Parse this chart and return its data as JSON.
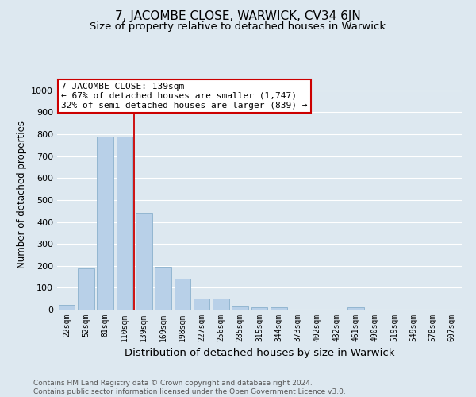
{
  "title": "7, JACOMBE CLOSE, WARWICK, CV34 6JN",
  "subtitle": "Size of property relative to detached houses in Warwick",
  "xlabel": "Distribution of detached houses by size in Warwick",
  "ylabel": "Number of detached properties",
  "categories": [
    "22sqm",
    "52sqm",
    "81sqm",
    "110sqm",
    "139sqm",
    "169sqm",
    "198sqm",
    "227sqm",
    "256sqm",
    "285sqm",
    "315sqm",
    "344sqm",
    "373sqm",
    "402sqm",
    "432sqm",
    "461sqm",
    "490sqm",
    "519sqm",
    "549sqm",
    "578sqm",
    "607sqm"
  ],
  "values": [
    20,
    190,
    790,
    790,
    440,
    195,
    140,
    50,
    50,
    15,
    10,
    10,
    0,
    0,
    0,
    10,
    0,
    0,
    0,
    0,
    0
  ],
  "bar_color": "#b8d0e8",
  "bar_edge_color": "#8ab0cc",
  "bar_width": 0.85,
  "red_line_x": 3.5,
  "red_line_color": "#cc0000",
  "annotation_text": "7 JACOMBE CLOSE: 139sqm\n← 67% of detached houses are smaller (1,747)\n32% of semi-detached houses are larger (839) →",
  "annotation_box_color": "#ffffff",
  "annotation_box_edge": "#cc0000",
  "ylim": [
    0,
    1050
  ],
  "yticks": [
    0,
    100,
    200,
    300,
    400,
    500,
    600,
    700,
    800,
    900,
    1000
  ],
  "background_color": "#dde8f0",
  "grid_color": "#ffffff",
  "footnote": "Contains HM Land Registry data © Crown copyright and database right 2024.\nContains public sector information licensed under the Open Government Licence v3.0.",
  "title_fontsize": 11,
  "subtitle_fontsize": 9.5,
  "xlabel_fontsize": 9.5,
  "ylabel_fontsize": 8.5,
  "tick_fontsize": 7,
  "annot_fontsize": 8,
  "footnote_fontsize": 6.5
}
